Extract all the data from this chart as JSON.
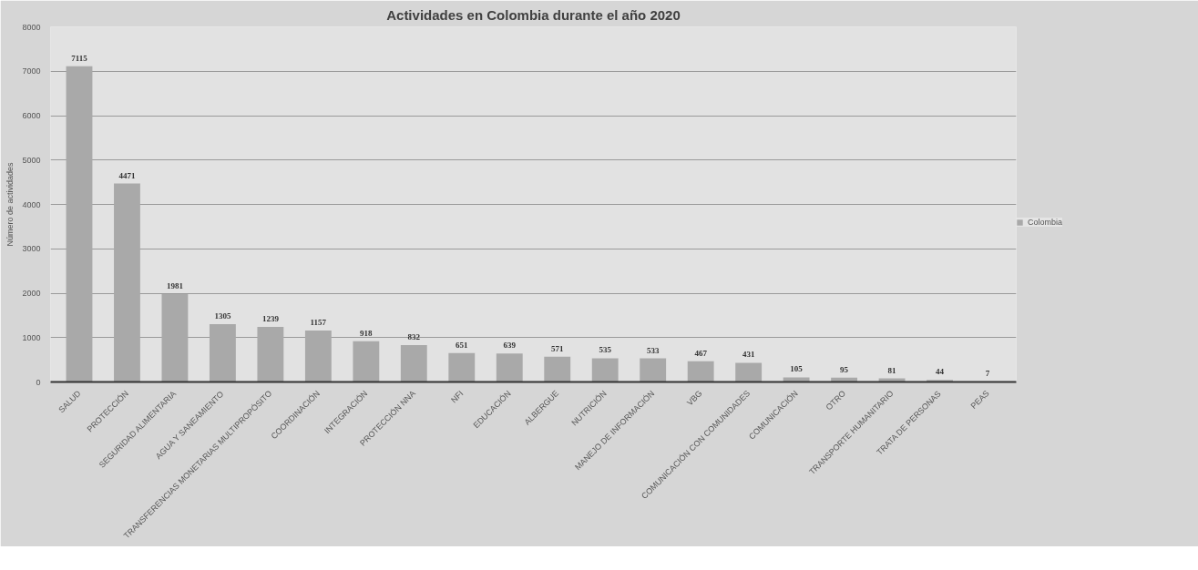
{
  "chart_data": {
    "type": "bar",
    "title": "Actividades en Colombia durante el año 2020",
    "ylabel": "Número de actividades",
    "categories": [
      "SALUD",
      "PROTECCIÓN",
      "SEGURIDAD ALIMENTARIA",
      "AGUA Y SANEAMIENTO",
      "TRANSFERENCIAS MONETARIAS MULTIPROPÓSITO",
      "COORDINACIÓN",
      "INTEGRACIÓN",
      "PROTECCIÓN NNA",
      "NFI",
      "EDUCACIÓN",
      "ALBERGUE",
      "NUTRICIÓN",
      "MANEJO DE INFORMACIÓN",
      "VBG",
      "COMUNICACIÓN CON COMUNIDADES",
      "COMUNICACIÓN",
      "OTRO",
      "TRANSPORTE HUMANITARIO",
      "TRATA DE PERSONAS",
      "PEAS"
    ],
    "series": [
      {
        "name": "Colombia",
        "color": "#a9a9a9",
        "values": [
          7115,
          4471,
          1981,
          1305,
          1239,
          1157,
          918,
          832,
          651,
          639,
          571,
          535,
          533,
          467,
          431,
          105,
          95,
          81,
          44,
          7
        ]
      }
    ],
    "ylim": [
      0,
      8000
    ],
    "yticks": [
      0,
      1000,
      2000,
      3000,
      4000,
      5000,
      6000,
      7000,
      8000
    ],
    "grid": "y",
    "legend": "right",
    "data_labels": true
  }
}
